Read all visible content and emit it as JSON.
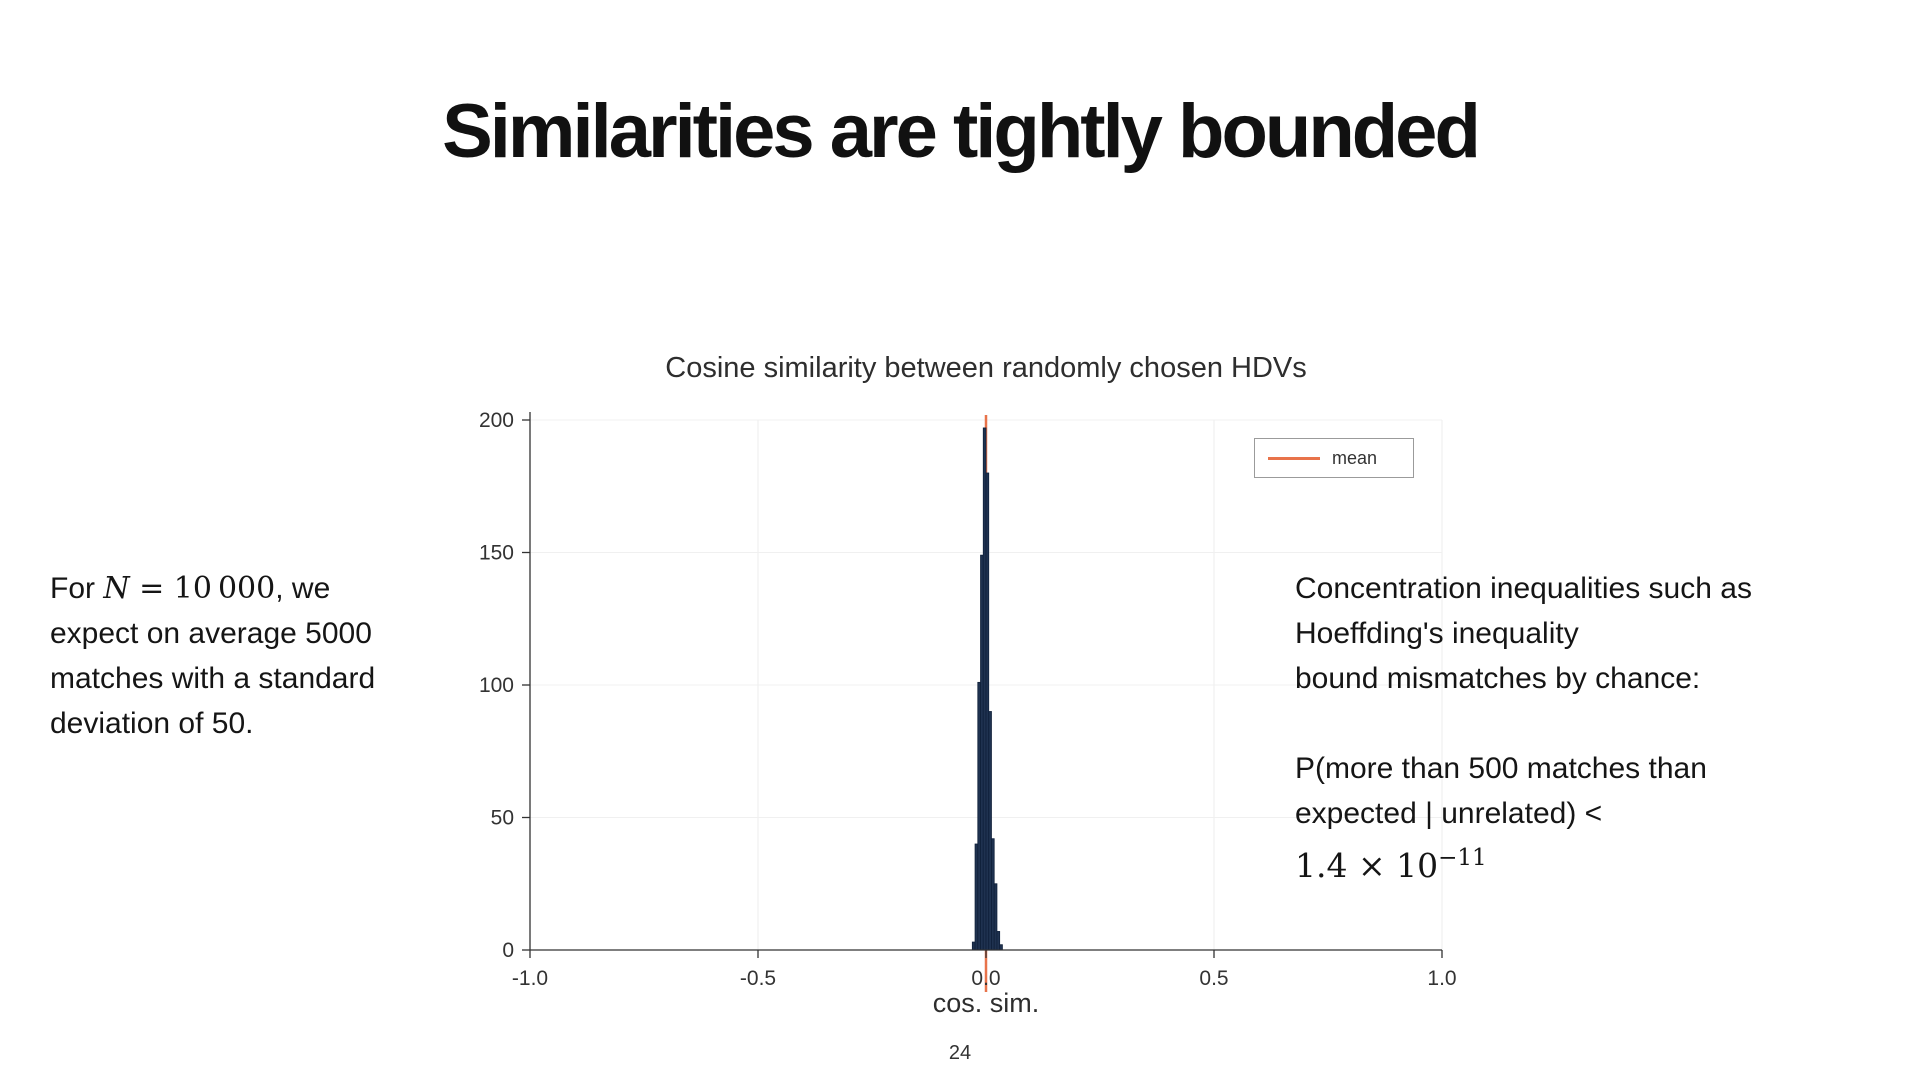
{
  "slide": {
    "title": "Similarities are tightly bounded",
    "page_number": "24"
  },
  "left_note": {
    "line1_prefix": "For ",
    "math_var": "N",
    "math_rest": " = 10 000",
    "line1_suffix": ", we",
    "line2": "expect on average 5000",
    "line3": "matches with a standard",
    "line4": "deviation of 50."
  },
  "right_note": {
    "line1": "Concentration inequalities such as",
    "line2": "Hoeffding's inequality",
    "line3": "bound mismatches by chance:",
    "line4": "P(more than 500 matches than",
    "line5": "expected | unrelated) <",
    "formula_base": "1.4 × 10",
    "formula_exponent": "−11"
  },
  "chart_data": {
    "type": "bar",
    "subtype": "histogram",
    "title": "Cosine similarity between randomly chosen HDVs",
    "xlabel": "cos. sim.",
    "ylabel": "",
    "xlim": [
      -1.0,
      1.0
    ],
    "ylim": [
      0,
      200
    ],
    "x_tick_values": [
      -1.0,
      -0.5,
      0.0,
      0.5,
      1.0
    ],
    "x_ticks": [
      "-1.0",
      "-0.5",
      "0.0",
      "0.5",
      "1.0"
    ],
    "y_ticks": [
      0,
      50,
      100,
      150,
      200
    ],
    "grid": true,
    "bin_width": 0.006,
    "bins": [
      {
        "x": -0.027,
        "count": 3
      },
      {
        "x": -0.021,
        "count": 40
      },
      {
        "x": -0.015,
        "count": 101
      },
      {
        "x": -0.009,
        "count": 149
      },
      {
        "x": -0.003,
        "count": 197
      },
      {
        "x": 0.003,
        "count": 180
      },
      {
        "x": 0.009,
        "count": 90
      },
      {
        "x": 0.015,
        "count": 42
      },
      {
        "x": 0.021,
        "count": 25
      },
      {
        "x": 0.027,
        "count": 7
      },
      {
        "x": 0.033,
        "count": 2
      }
    ],
    "bar_color": "#1f3250",
    "bar_stroke": "#10203a",
    "mean_line": {
      "x": 0.0,
      "color": "#e8734a",
      "label": "mean"
    },
    "legend": {
      "position": "top-right"
    }
  }
}
